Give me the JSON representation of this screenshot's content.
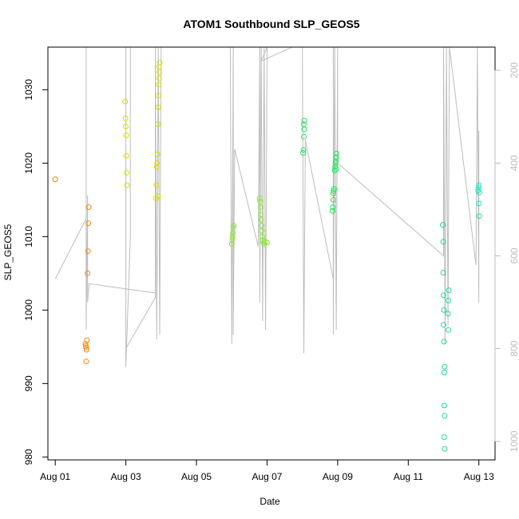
{
  "chart_data": {
    "type": "scatter",
    "title": "ATOM1 Southbound SLP_GEOS5",
    "xlabel": "Date",
    "ylabel": "SLP_GEOS5",
    "xlim": [
      "2016-07-31T19:00",
      "2016-08-13T11:00"
    ],
    "ylim": [
      979.6,
      1035.8
    ],
    "x_ticks": [
      {
        "date": "2016-08-01T00:00",
        "label": "Aug 01"
      },
      {
        "date": "2016-08-03T00:00",
        "label": "Aug 03"
      },
      {
        "date": "2016-08-05T00:00",
        "label": "Aug 05"
      },
      {
        "date": "2016-08-07T00:00",
        "label": "Aug 07"
      },
      {
        "date": "2016-08-09T00:00",
        "label": "Aug 09"
      },
      {
        "date": "2016-08-11T00:00",
        "label": "Aug 11"
      },
      {
        "date": "2016-08-13T00:00",
        "label": "Aug 13"
      }
    ],
    "y_ticks": [
      980,
      990,
      1000,
      1010,
      1020,
      1030
    ],
    "right_axis": {
      "description": "reversed secondary axis for grey profile trace",
      "range": [
        150,
        1040
      ],
      "ticks": [
        200,
        400,
        600,
        800,
        1000
      ],
      "color": "#bdbdbd"
    },
    "grid": false,
    "legend": "none",
    "point_color_scale": [
      "#ff8c00",
      "#ffd700",
      "#ffff00",
      "#adff2f",
      "#00ff00",
      "#00ff7f",
      "#00fa9a",
      "#00ffd0"
    ],
    "series": [
      {
        "color": "#f08a0c",
        "points": [
          [
            "2016-08-01T00:00",
            1017.8
          ],
          [
            "2016-08-01T20:30",
            995.4
          ],
          [
            "2016-08-01T20:45",
            995.1
          ],
          [
            "2016-08-01T21:00",
            994.9
          ],
          [
            "2016-08-01T21:15",
            994.6
          ],
          [
            "2016-08-01T21:30",
            995.9
          ],
          [
            "2016-08-01T21:00",
            993.0
          ],
          [
            "2016-08-01T22:00",
            1005.0
          ],
          [
            "2016-08-01T22:15",
            1008.0
          ],
          [
            "2016-08-01T22:30",
            1011.8
          ],
          [
            "2016-08-01T22:45",
            1014.0
          ]
        ]
      },
      {
        "color": "#dcdc00",
        "points": [
          [
            "2016-08-02T23:30",
            1028.4
          ],
          [
            "2016-08-02T23:45",
            1026.1
          ],
          [
            "2016-08-03T00:00",
            1025.0
          ],
          [
            "2016-08-03T00:15",
            1023.8
          ],
          [
            "2016-08-03T00:15",
            1021.0
          ],
          [
            "2016-08-03T00:30",
            1018.7
          ],
          [
            "2016-08-03T00:45",
            1017.0
          ],
          [
            "2016-08-03T20:30",
            1015.2
          ],
          [
            "2016-08-03T20:45",
            1017.0
          ],
          [
            "2016-08-03T21:00",
            1019.5
          ],
          [
            "2016-08-03T21:15",
            1020.0
          ],
          [
            "2016-08-03T21:30",
            1021.2
          ],
          [
            "2016-08-03T21:45",
            1025.3
          ],
          [
            "2016-08-03T22:00",
            1027.6
          ],
          [
            "2016-08-03T22:00",
            1029.2
          ],
          [
            "2016-08-03T22:15",
            1030.7
          ],
          [
            "2016-08-03T22:30",
            1031.6
          ],
          [
            "2016-08-03T22:45",
            1032.4
          ],
          [
            "2016-08-03T22:30",
            1033.1
          ],
          [
            "2016-08-03T23:00",
            1033.7
          ],
          [
            "2016-08-03T22:00",
            1015.5
          ]
        ]
      },
      {
        "color": "#8fe63a",
        "points": [
          [
            "2016-08-06T00:00",
            1009.0
          ],
          [
            "2016-08-06T00:15",
            1009.5
          ],
          [
            "2016-08-06T00:30",
            1010.0
          ],
          [
            "2016-08-06T00:45",
            1010.5
          ],
          [
            "2016-08-06T01:00",
            1011.2
          ],
          [
            "2016-08-06T01:15",
            1011.5
          ],
          [
            "2016-08-06T19:00",
            1015.2
          ],
          [
            "2016-08-06T19:15",
            1014.8
          ],
          [
            "2016-08-06T19:30",
            1014.0
          ],
          [
            "2016-08-06T19:45",
            1013.0
          ],
          [
            "2016-08-06T20:00",
            1012.3
          ],
          [
            "2016-08-06T20:15",
            1011.5
          ],
          [
            "2016-08-06T20:30",
            1010.8
          ],
          [
            "2016-08-06T20:45",
            1010.0
          ],
          [
            "2016-08-06T21:00",
            1009.5
          ],
          [
            "2016-08-06T21:30",
            1009.2
          ],
          [
            "2016-08-06T22:00",
            1009.0
          ],
          [
            "2016-08-06T23:00",
            1009.3
          ],
          [
            "2016-08-07T00:00",
            1009.2
          ]
        ]
      },
      {
        "color": "#1ee85a",
        "points": [
          [
            "2016-08-08T00:30",
            1021.4
          ],
          [
            "2016-08-08T00:45",
            1021.8
          ],
          [
            "2016-08-08T01:00",
            1023.6
          ],
          [
            "2016-08-08T01:15",
            1024.6
          ],
          [
            "2016-08-08T01:00",
            1025.3
          ],
          [
            "2016-08-08T01:15",
            1025.8
          ],
          [
            "2016-08-08T20:30",
            1013.5
          ],
          [
            "2016-08-08T20:45",
            1014.0
          ],
          [
            "2016-08-08T21:00",
            1015.0
          ],
          [
            "2016-08-08T21:00",
            1015.9
          ],
          [
            "2016-08-08T21:15",
            1016.2
          ],
          [
            "2016-08-08T21:30",
            1016.5
          ],
          [
            "2016-08-08T22:00",
            1019.0
          ],
          [
            "2016-08-08T22:15",
            1019.5
          ],
          [
            "2016-08-08T22:30",
            1020.0
          ],
          [
            "2016-08-08T22:45",
            1020.3
          ],
          [
            "2016-08-08T23:00",
            1020.8
          ],
          [
            "2016-08-08T23:15",
            1021.3
          ],
          [
            "2016-08-08T23:00",
            1019.2
          ]
        ]
      },
      {
        "color": "#1ad9a0",
        "points": [
          [
            "2016-08-11T23:30",
            1011.6
          ],
          [
            "2016-08-11T23:45",
            1009.3
          ],
          [
            "2016-08-11T23:45",
            1005.1
          ],
          [
            "2016-08-12T00:00",
            1002.0
          ],
          [
            "2016-08-12T00:15",
            1000.0
          ],
          [
            "2016-08-12T00:00",
            998.0
          ],
          [
            "2016-08-12T00:15",
            995.7
          ],
          [
            "2016-08-12T00:30",
            991.5
          ],
          [
            "2016-08-12T00:45",
            992.3
          ],
          [
            "2016-08-12T00:30",
            987.0
          ],
          [
            "2016-08-12T00:45",
            985.6
          ],
          [
            "2016-08-12T00:30",
            982.7
          ],
          [
            "2016-08-12T00:45",
            981.1
          ],
          [
            "2016-08-12T03:30",
            1002.7
          ],
          [
            "2016-08-12T03:15",
            1001.3
          ],
          [
            "2016-08-12T03:00",
            999.5
          ],
          [
            "2016-08-12T03:15",
            997.3
          ]
        ]
      },
      {
        "color": "#1ee8c0",
        "points": [
          [
            "2016-08-12T23:30",
            1016.3
          ],
          [
            "2016-08-12T23:45",
            1016.7
          ],
          [
            "2016-08-13T00:00",
            1017.0
          ],
          [
            "2016-08-13T00:15",
            1016.0
          ],
          [
            "2016-08-13T00:00",
            1014.5
          ],
          [
            "2016-08-13T00:15",
            1012.8
          ]
        ]
      }
    ],
    "profile_trace": {
      "color": "#bdbdbd",
      "axis": "right",
      "path": [
        [
          "2016-08-01T00:00",
          650
        ],
        [
          "2016-08-01T21:00",
          520
        ],
        [
          "2016-08-01T21:00",
          150
        ],
        [
          "2016-08-01T21:00",
          760
        ],
        [
          "2016-08-01T22:00",
          470
        ],
        [
          "2016-08-01T22:00",
          700
        ],
        [
          "2016-08-01T23:00",
          660
        ],
        [
          "2016-08-03T20:00",
          680
        ],
        [
          "2016-08-03T20:00",
          150
        ],
        [
          "2016-08-03T20:00",
          690
        ],
        [
          "2016-08-03T00:00",
          800
        ],
        [
          "2016-08-03T00:00",
          150
        ],
        [
          "2016-08-03T00:00",
          840
        ],
        [
          "2016-08-03T03:00",
          560
        ],
        [
          "2016-08-03T03:00",
          150
        ],
        [
          "2016-08-03T20:00",
          150
        ],
        [
          "2016-08-03T21:00",
          780
        ],
        [
          "2016-08-03T22:00",
          150
        ],
        [
          "2016-08-03T23:00",
          770
        ],
        [
          "2016-08-04T00:00",
          150
        ],
        [
          "2016-08-05T23:00",
          150
        ],
        [
          "2016-08-06T00:00",
          790
        ],
        [
          "2016-08-06T01:00",
          150
        ],
        [
          "2016-08-06T01:00",
          770
        ],
        [
          "2016-08-06T02:00",
          370
        ],
        [
          "2016-08-06T18:00",
          580
        ],
        [
          "2016-08-06T19:00",
          150
        ],
        [
          "2016-08-06T19:00",
          700
        ],
        [
          "2016-08-06T20:00",
          150
        ],
        [
          "2016-08-06T21:00",
          740
        ],
        [
          "2016-08-06T22:00",
          150
        ],
        [
          "2016-08-06T23:00",
          760
        ],
        [
          "2016-08-07T00:00",
          150
        ],
        [
          "2016-08-06T20:00",
          180
        ],
        [
          "2016-08-07T17:00",
          150
        ],
        [
          "2016-08-08T00:00",
          150
        ],
        [
          "2016-08-08T01:00",
          810
        ],
        [
          "2016-08-08T02:00",
          350
        ],
        [
          "2016-08-08T21:00",
          650
        ],
        [
          "2016-08-08T21:00",
          150
        ],
        [
          "2016-08-08T21:00",
          770
        ],
        [
          "2016-08-08T22:00",
          150
        ],
        [
          "2016-08-08T23:00",
          760
        ],
        [
          "2016-08-09T00:00",
          150
        ],
        [
          "2016-08-09T00:00",
          400
        ],
        [
          "2016-08-12T00:00",
          600
        ],
        [
          "2016-08-12T00:00",
          150
        ],
        [
          "2016-08-12T01:00",
          790
        ],
        [
          "2016-08-12T02:00",
          150
        ],
        [
          "2016-08-12T03:00",
          750
        ],
        [
          "2016-08-12T04:00",
          150
        ],
        [
          "2016-08-12T22:00",
          620
        ],
        [
          "2016-08-12T23:00",
          150
        ],
        [
          "2016-08-13T00:00",
          700
        ],
        [
          "2016-08-13T00:00",
          330
        ]
      ]
    }
  }
}
